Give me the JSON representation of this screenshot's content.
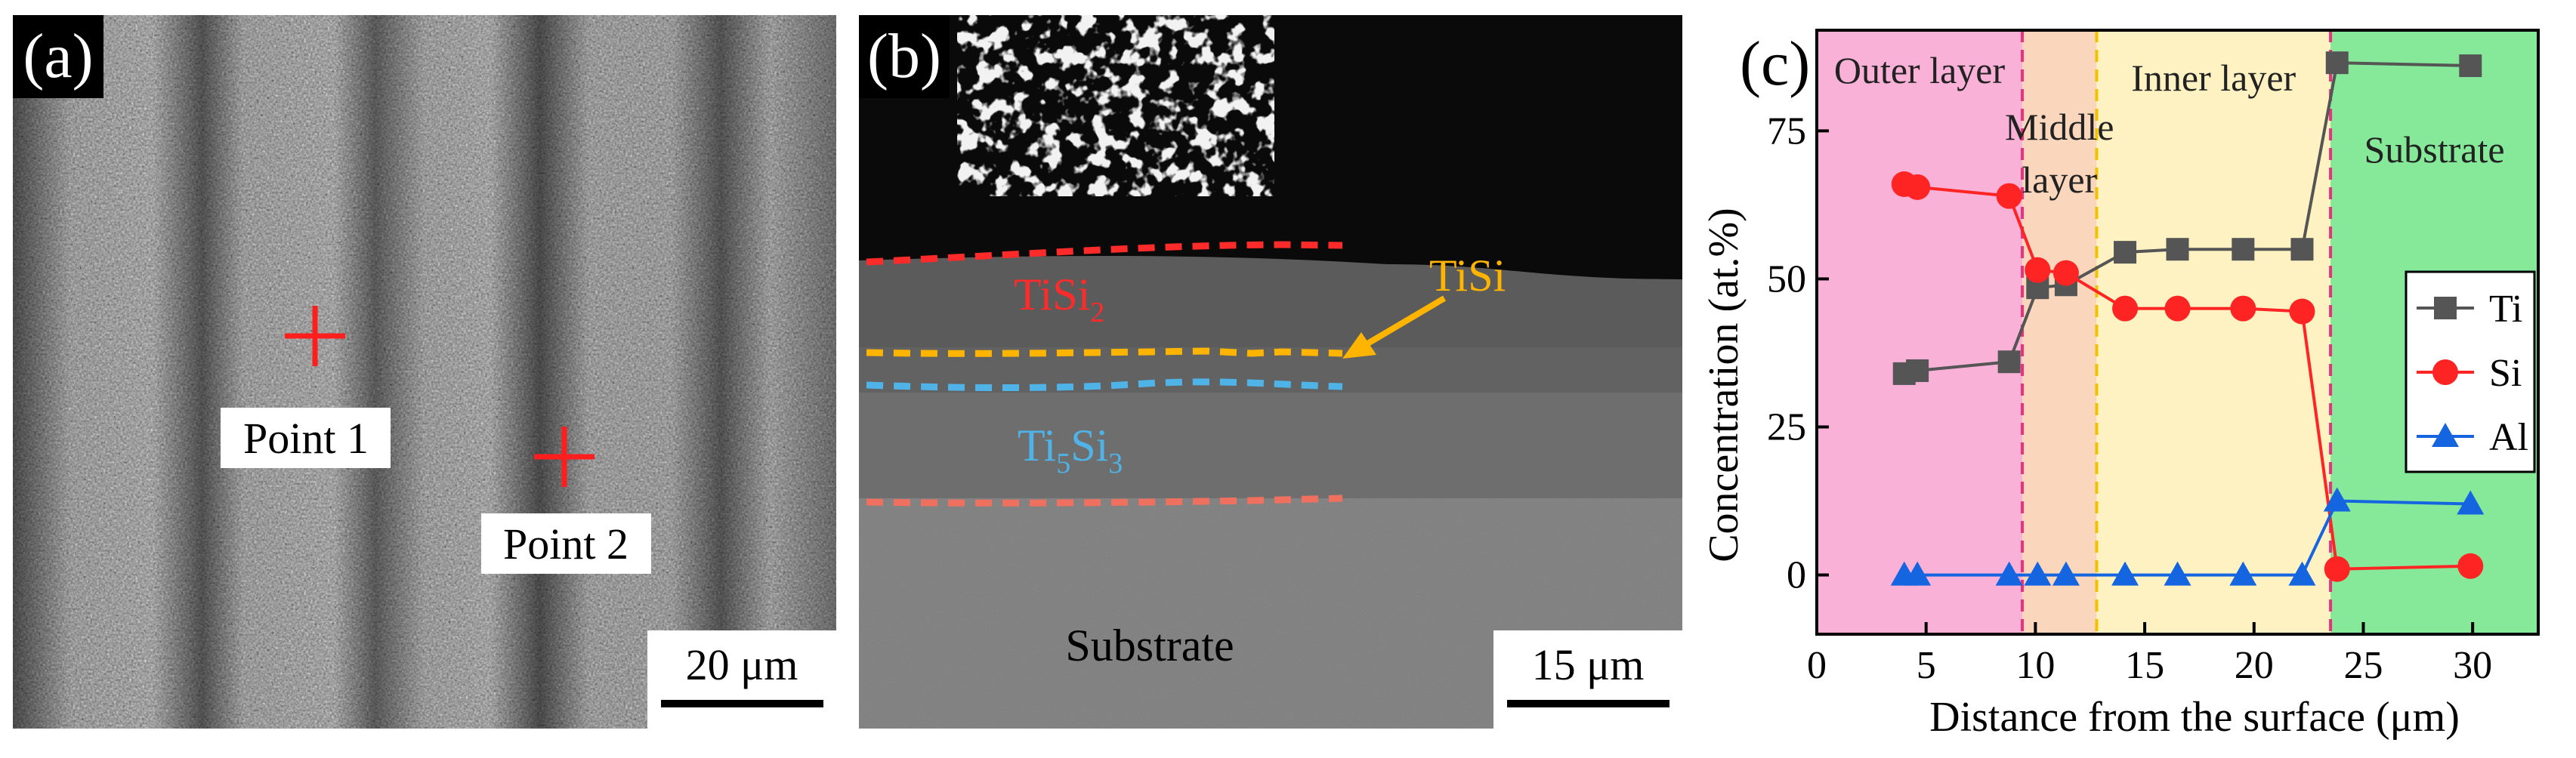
{
  "panel_a": {
    "label": "(a)",
    "point1_label": "Point 1",
    "point2_label": "Point 2",
    "scale_label": "20 μm"
  },
  "panel_b": {
    "label": "(b)",
    "phase_tisi2": "TiSi",
    "phase_tisi2_sub": "2",
    "phase_tisi": "TiSi",
    "phase_ti5si3_a": "Ti",
    "phase_ti5si3_b": "5",
    "phase_ti5si3_c": "Si",
    "phase_ti5si3_d": "3",
    "substrate_label": "Substrate",
    "scale_label": "15 μm",
    "colors": {
      "tisi2": "#ff2a2a",
      "tisi": "#ffb400",
      "ti5si3": "#4fb3e8",
      "bottom_line": "#f07060"
    }
  },
  "chart_data": {
    "panel_label": "(c)",
    "type": "line",
    "xlabel": "Distance from the surface (μm)",
    "ylabel": "Concentration (at.%)",
    "xlim": [
      0,
      33
    ],
    "ylim": [
      -10,
      92
    ],
    "xticks": [
      0,
      5,
      10,
      15,
      20,
      25,
      30
    ],
    "yticks": [
      0,
      25,
      50,
      75
    ],
    "regions": [
      {
        "label_lines": [
          "Outer layer"
        ],
        "x0": 0,
        "x1": 9.4,
        "color": "#f9b1d8"
      },
      {
        "label_lines": [
          "Middle",
          "layer"
        ],
        "x0": 9.4,
        "x1": 12.8,
        "color": "#fad6bd"
      },
      {
        "label_lines": [
          "Inner layer"
        ],
        "x0": 12.8,
        "x1": 23.5,
        "color": "#fff2c2"
      },
      {
        "label_lines": [
          "Substrate"
        ],
        "x0": 23.5,
        "x1": 33,
        "color": "#86e99a"
      }
    ],
    "boundaries": [
      {
        "x": 9.4,
        "color": "#e8327e"
      },
      {
        "x": 12.8,
        "color": "#f2c200"
      },
      {
        "x": 23.5,
        "color": "#e8327e"
      }
    ],
    "legend_position": "right",
    "series": [
      {
        "name": "Ti",
        "marker": "square",
        "color": "#555555",
        "x": [
          4,
          4.6,
          8.8,
          10.1,
          11.4,
          14.1,
          16.5,
          19.5,
          22.2,
          23.8,
          29.9
        ],
        "y": [
          34,
          34.5,
          36,
          48.5,
          49,
          54.5,
          55,
          55,
          55,
          86.5,
          86
        ]
      },
      {
        "name": "Si",
        "marker": "circle",
        "color": "#ff2424",
        "x": [
          4,
          4.6,
          8.8,
          10.1,
          11.4,
          14.1,
          16.5,
          19.5,
          22.2,
          23.8,
          29.9
        ],
        "y": [
          66,
          65.5,
          64,
          51.5,
          51,
          45,
          45,
          45,
          44.5,
          1,
          1.5
        ]
      },
      {
        "name": "Al",
        "marker": "triangle",
        "color": "#1565e0",
        "x": [
          4,
          4.6,
          8.8,
          10.1,
          11.4,
          14.1,
          16.5,
          19.5,
          22.2,
          23.8,
          29.9
        ],
        "y": [
          0,
          0,
          0,
          0,
          0,
          0,
          0,
          0,
          0,
          12.5,
          12
        ]
      }
    ]
  }
}
